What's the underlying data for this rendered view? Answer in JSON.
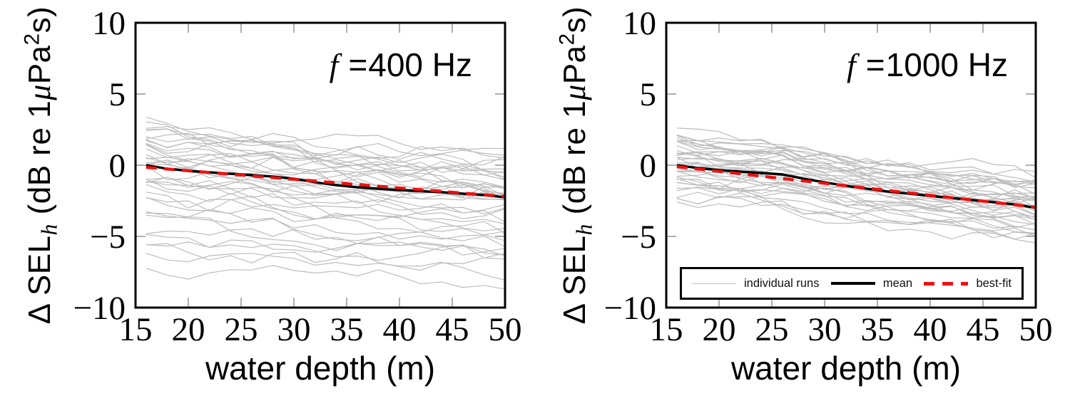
{
  "figure": {
    "ylabel_parts": {
      "delta": "Δ",
      "name": " SEL",
      "sub": "h",
      "mid": " (dB re 1",
      "mu": "μ",
      "pa": "Pa",
      "sup": "2",
      "end": "s)"
    },
    "legend": {
      "items": [
        {
          "label": "individual runs",
          "style": "thin-gray-line"
        },
        {
          "label": "mean",
          "style": "thick-black-line"
        },
        {
          "label": "best-fit",
          "style": "red-dashed-line"
        }
      ]
    },
    "colors": {
      "runs": "#bdbdbd",
      "mean": "#000000",
      "fit": "#ee1111",
      "axis": "#000000",
      "tick": "#a6a6a6",
      "background": "#ffffff"
    }
  },
  "chart_data": [
    {
      "type": "line",
      "title_parts": {
        "var": "f",
        "eq": "=",
        "value": "400 Hz"
      },
      "xlabel": "water depth (m)",
      "ylabel": "Δ SELₕ (dB re 1μPa²s)",
      "xlim": [
        15,
        50
      ],
      "ylim": [
        -10,
        10
      ],
      "xticks": {
        "values": [
          15,
          20,
          25,
          30,
          35,
          40,
          45,
          50
        ],
        "labels": [
          "15",
          "20",
          "25",
          "30",
          "35",
          "40",
          "45",
          "50"
        ]
      },
      "yticks": {
        "values": [
          10,
          5,
          0,
          -5,
          -10
        ],
        "labels": [
          "10",
          "5",
          "0",
          "−5",
          "−10"
        ]
      },
      "grid": false,
      "legend_position": "none",
      "x": [
        16,
        18,
        20,
        22,
        24,
        26,
        28,
        30,
        32,
        34,
        36,
        38,
        40,
        42,
        44,
        46,
        48,
        50
      ],
      "series": [
        {
          "name": "individual runs",
          "type": "ensemble",
          "count": 40,
          "seed": 13,
          "noise": 0.55,
          "smooth": 0.5,
          "outlier_threshold": -4,
          "outlier_slope": 0.4,
          "start_offsets": [
            3.3,
            3.0,
            2.7,
            2.5,
            2.2,
            2.0,
            1.8,
            1.6,
            1.45,
            1.3,
            1.15,
            1.0,
            0.85,
            0.7,
            0.55,
            0.4,
            0.25,
            0.1,
            -0.05,
            -0.2,
            -0.4,
            -0.6,
            -0.8,
            -1.0,
            -1.2,
            -1.45,
            -1.7,
            -2.0,
            -2.3,
            -2.6,
            -3.0,
            -3.4,
            -3.9,
            -4.6,
            -5.2,
            -5.6,
            -6.1,
            -6.6,
            -7.3,
            1.9
          ]
        },
        {
          "name": "mean",
          "values": [
            0.0,
            -0.25,
            -0.4,
            -0.5,
            -0.6,
            -0.7,
            -0.8,
            -0.95,
            -1.2,
            -1.4,
            -1.55,
            -1.65,
            -1.75,
            -1.82,
            -1.9,
            -2.0,
            -2.1,
            -2.25
          ]
        },
        {
          "name": "best-fit",
          "x": [
            16,
            50
          ],
          "values": [
            -0.15,
            -2.2
          ]
        }
      ]
    },
    {
      "type": "line",
      "title_parts": {
        "var": "f",
        "eq": "=",
        "value": "1000 Hz"
      },
      "xlabel": "water depth (m)",
      "ylabel": "Δ SELₕ (dB re 1μPa²s)",
      "xlim": [
        15,
        50
      ],
      "ylim": [
        -10,
        10
      ],
      "xticks": {
        "values": [
          15,
          20,
          25,
          30,
          35,
          40,
          45,
          50
        ],
        "labels": [
          "15",
          "20",
          "25",
          "30",
          "35",
          "40",
          "45",
          "50"
        ]
      },
      "yticks": {
        "values": [
          10,
          5,
          0,
          -5,
          -10
        ],
        "labels": [
          "10",
          "5",
          "0",
          "−5",
          "−10"
        ]
      },
      "grid": false,
      "legend_position": "lower-center",
      "x": [
        16,
        18,
        20,
        22,
        24,
        26,
        28,
        30,
        32,
        34,
        36,
        38,
        40,
        42,
        44,
        46,
        48,
        50
      ],
      "series": [
        {
          "name": "individual runs",
          "type": "ensemble",
          "count": 40,
          "seed": 29,
          "noise": 0.48,
          "smooth": 0.5,
          "outlier_threshold": -99,
          "outlier_slope": 1,
          "start_offsets": [
            2.4,
            2.2,
            2.0,
            1.85,
            1.7,
            1.55,
            1.4,
            1.3,
            1.2,
            1.1,
            1.0,
            0.9,
            0.8,
            0.7,
            0.6,
            0.5,
            0.4,
            0.3,
            0.2,
            0.1,
            0.0,
            -0.1,
            -0.2,
            -0.35,
            -0.5,
            -0.65,
            -0.8,
            -0.95,
            -1.1,
            -1.25,
            -1.4,
            -1.6,
            -1.8,
            -2.0,
            -2.2,
            -2.45,
            1.5,
            -0.45,
            0.25,
            -1.0
          ]
        },
        {
          "name": "mean",
          "values": [
            0.0,
            -0.2,
            -0.35,
            -0.45,
            -0.55,
            -0.65,
            -0.95,
            -1.2,
            -1.45,
            -1.65,
            -1.85,
            -2.0,
            -2.15,
            -2.3,
            -2.45,
            -2.6,
            -2.75,
            -3.0
          ]
        },
        {
          "name": "best-fit",
          "x": [
            16,
            50
          ],
          "values": [
            -0.1,
            -2.95
          ]
        }
      ]
    }
  ]
}
